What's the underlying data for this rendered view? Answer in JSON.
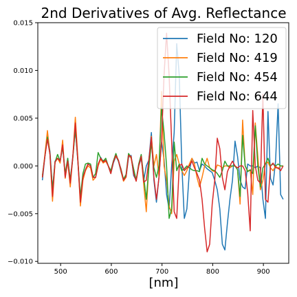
{
  "chart_data": {
    "type": "line",
    "title": "2nd Derivatives of Avg. Reflectance",
    "xlabel": "[nm]",
    "ylabel": "",
    "xlim": [
      455,
      950
    ],
    "ylim": [
      -0.0102,
      0.015
    ],
    "xticks": [
      500,
      600,
      700,
      800,
      900
    ],
    "yticks": [
      -0.01,
      -0.005,
      0.0,
      0.005,
      0.01,
      0.015
    ],
    "xtick_labels": [
      "500",
      "600",
      "700",
      "800",
      "900"
    ],
    "ytick_labels": [
      "−0.010",
      "−0.005",
      "0.000",
      "0.005",
      "0.010",
      "0.015"
    ],
    "grid": false,
    "legend_position": "top-right",
    "x": [
      464,
      469,
      474,
      479,
      484,
      489,
      494,
      499,
      504,
      509,
      514,
      519,
      524,
      529,
      534,
      539,
      544,
      549,
      554,
      559,
      564,
      569,
      574,
      579,
      584,
      589,
      594,
      599,
      604,
      609,
      614,
      619,
      624,
      629,
      634,
      639,
      644,
      649,
      654,
      659,
      664,
      669,
      674,
      679,
      684,
      689,
      694,
      699,
      704,
      709,
      714,
      719,
      724,
      729,
      734,
      739,
      744,
      749,
      754,
      759,
      764,
      769,
      774,
      779,
      784,
      789,
      794,
      799,
      804,
      809,
      814,
      819,
      824,
      829,
      834,
      839,
      844,
      849,
      854,
      859,
      864,
      869,
      874,
      879,
      884,
      889,
      894,
      899,
      904,
      909,
      914,
      919,
      924,
      929,
      934,
      939
    ],
    "series": [
      {
        "name": "Field No: 120",
        "color": "#1f77b4",
        "values": [
          -0.0015,
          0.001,
          0.0032,
          0.0015,
          -0.0025,
          0.0005,
          0.0008,
          0.0005,
          0.002,
          -0.001,
          0.0008,
          -0.0015,
          0.001,
          0.0038,
          0.0005,
          -0.0035,
          -0.0012,
          -0.0004,
          0.0002,
          0.0,
          -0.0012,
          -0.0012,
          0.0,
          0.0009,
          0.0004,
          0.0006,
          0.0,
          -0.0008,
          0.0003,
          0.001,
          0.0005,
          -0.0006,
          -0.0015,
          -0.0012,
          0.0009,
          0.0011,
          -0.001,
          -0.0015,
          0.0,
          0.0008,
          -0.0015,
          0.0,
          0.0006,
          0.0035,
          -0.0015,
          -0.0038,
          -0.0012,
          0.0025,
          0.0007,
          -0.003,
          -0.0045,
          0.0,
          0.0035,
          0.0128,
          0.0095,
          0.0002,
          -0.0055,
          -0.0045,
          -0.0005,
          0.0008,
          0.0003,
          0.0004,
          -0.0005,
          0.0002,
          0.0,
          -0.0003,
          -0.0005,
          -0.0007,
          -0.0015,
          -0.0025,
          -0.0045,
          -0.0082,
          -0.0088,
          -0.006,
          -0.0035,
          -0.0015,
          0.0026,
          0.001,
          -0.0015,
          -0.0022,
          -0.0024,
          0.0002,
          0.0,
          0.0,
          -0.0002,
          0.0,
          -0.0002,
          -0.0035,
          -0.0055,
          0.0057,
          -0.0013,
          -0.002,
          0.0005,
          0.0065,
          -0.003,
          -0.0035
        ]
      },
      {
        "name": "Field No: 419",
        "color": "#ff7f0e",
        "values": [
          -0.0012,
          0.0012,
          0.0037,
          0.0012,
          -0.0037,
          0.0004,
          0.0008,
          0.0003,
          0.0027,
          -0.0013,
          0.0005,
          -0.0022,
          0.0009,
          0.0051,
          0.0008,
          -0.0042,
          -0.0015,
          -0.0005,
          0.0,
          -0.0002,
          -0.0015,
          -0.0012,
          0.0,
          0.0007,
          0.0003,
          0.0005,
          0.0,
          -0.0008,
          0.0005,
          0.001,
          0.0006,
          -0.0005,
          -0.0016,
          -0.0012,
          0.0012,
          0.0008,
          -0.0006,
          -0.0016,
          0.0,
          0.001,
          -0.002,
          -0.0048,
          0.0,
          0.0031,
          0.0,
          0.0012,
          -0.0011,
          0.0078,
          0.0,
          -0.0015,
          -0.0042,
          -0.005,
          0.0005,
          0.0012,
          0.0002,
          -0.0005,
          -0.001,
          -0.0005,
          0.0002,
          0.0008,
          0.0002,
          -0.0012,
          -0.0022,
          -0.0012,
          0.0,
          0.0008,
          -0.0002,
          -0.0005,
          -0.0006,
          0.0001,
          0.0,
          -0.0002,
          0.0,
          0.0,
          -0.0002,
          0.0,
          0.0,
          -0.0004,
          -0.004,
          0.0048,
          0.0,
          -0.0005,
          -0.0005,
          -0.003,
          0.0045,
          0.001,
          -0.0025,
          -0.0015,
          0.0002,
          0.0004,
          -0.0002,
          -0.0005,
          0.0,
          -0.0003,
          0.0,
          0.0
        ]
      },
      {
        "name": "Field No: 454",
        "color": "#2ca02c",
        "values": [
          -0.001,
          0.001,
          0.003,
          0.0012,
          -0.0025,
          0.0004,
          0.0012,
          0.0005,
          0.002,
          -0.0008,
          0.0008,
          -0.0015,
          0.0008,
          0.0039,
          0.0006,
          -0.0032,
          -0.0008,
          0.0002,
          0.0003,
          0.0002,
          -0.0012,
          -0.0008,
          0.0014,
          0.0008,
          0.0005,
          0.0008,
          0.0,
          -0.0005,
          0.0005,
          0.0013,
          0.0005,
          -0.0003,
          -0.0014,
          -0.0009,
          0.0013,
          0.0009,
          -0.0003,
          -0.0015,
          0.0002,
          0.0012,
          -0.0012,
          -0.0035,
          -0.0002,
          0.0024,
          -0.0002,
          -0.0012,
          0.0,
          0.0061,
          0.0035,
          0.0,
          -0.0055,
          -0.0045,
          0.0025,
          -0.0005,
          0.0002,
          -0.0005,
          -0.0003,
          0.0,
          -0.0002,
          -0.0004,
          -0.0005,
          -0.0005,
          -0.0006,
          0.0008,
          0.0002,
          0.0,
          -0.0002,
          -0.0004,
          -0.0005,
          -0.0008,
          -0.0012,
          -0.0005,
          0.0005,
          0.0,
          0.0,
          0.0,
          0.0,
          -0.0004,
          -0.0032,
          0.0032,
          0.0,
          -0.0006,
          -0.0004,
          -0.0008,
          0.0042,
          0.0,
          -0.0022,
          -0.0002,
          0.0002,
          0.0008,
          0.0,
          0.0002,
          0.0,
          0.0002,
          0.0,
          0.0
        ]
      },
      {
        "name": "Field No: 644",
        "color": "#d62728",
        "values": [
          -0.0012,
          0.001,
          0.0028,
          0.0012,
          -0.0032,
          0.0004,
          0.0008,
          0.0005,
          0.0022,
          -0.0012,
          0.0005,
          -0.0018,
          0.0009,
          0.0045,
          0.0005,
          -0.0038,
          -0.0012,
          -0.0004,
          0.0002,
          0.0,
          -0.0012,
          -0.0012,
          0.0002,
          0.0008,
          0.0004,
          0.0006,
          0.0,
          -0.0008,
          0.0004,
          0.0011,
          0.0006,
          -0.0004,
          -0.0015,
          -0.0011,
          0.0011,
          0.001,
          -0.0008,
          -0.0016,
          0.0,
          0.001,
          -0.0017,
          -0.0015,
          0.0006,
          0.003,
          -0.0012,
          -0.0035,
          -0.0012,
          0.0025,
          0.0095,
          0.0139,
          0.0095,
          0.0025,
          -0.0048,
          -0.0055,
          0.0,
          0.0002,
          -0.0005,
          -0.0002,
          0.0,
          0.0005,
          -0.0002,
          -0.0008,
          -0.0015,
          -0.0035,
          -0.0065,
          -0.009,
          -0.0082,
          -0.004,
          -0.0015,
          0.0029,
          0.0018,
          -0.0012,
          -0.0025,
          -0.0006,
          0.0,
          0.0005,
          0.0,
          -0.0002,
          0.0,
          0.0,
          -0.0005,
          -0.0028,
          -0.0068,
          0.0058,
          0.0,
          -0.0015,
          -0.0018,
          0.0075,
          -0.0035,
          -0.0038,
          0.0,
          0.0003,
          -0.0002,
          -0.0002,
          -0.0005,
          0.0
        ]
      }
    ]
  }
}
